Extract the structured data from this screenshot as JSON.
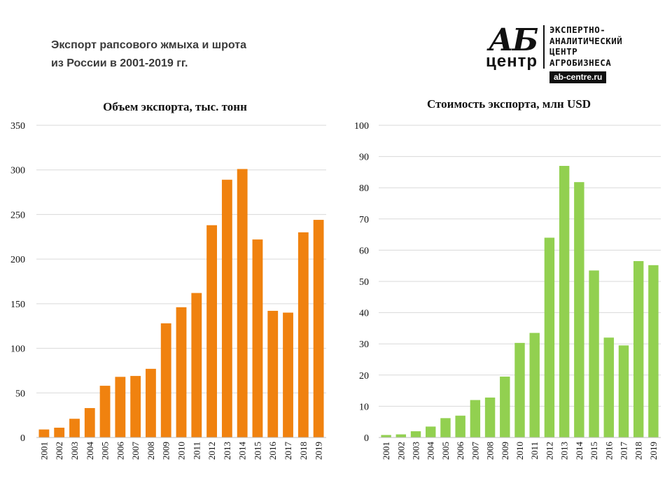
{
  "header": {
    "title_line1": "Экспорт рапсового  жмыха и шрота",
    "title_line2": "из России в 2001-2019 гг."
  },
  "logo": {
    "mark_top": "АБ",
    "mark_bottom": "центр",
    "line1": "ЭКСПЕРТНО-",
    "line2": "АНАЛИТИЧЕСКИЙ",
    "line3": "ЦЕНТР",
    "line4": "АГРОБИЗНЕСА",
    "url": "ab-centre.ru"
  },
  "chart_data": [
    {
      "type": "bar",
      "title": "Объем экспорта, тыс. тонн",
      "xlabel": "",
      "ylabel": "",
      "color": "#f0820f",
      "ylim": [
        0,
        350
      ],
      "yticks": [
        0,
        50,
        100,
        150,
        200,
        250,
        300,
        350
      ],
      "grid": true,
      "categories": [
        "2001",
        "2002",
        "2003",
        "2004",
        "2005",
        "2006",
        "2007",
        "2008",
        "2009",
        "2010",
        "2011",
        "2012",
        "2013",
        "2014",
        "2015",
        "2016",
        "2017",
        "2018",
        "2019"
      ],
      "values": [
        9,
        11,
        21,
        33,
        58,
        68,
        69,
        77,
        128,
        146,
        162,
        238,
        289,
        301,
        222,
        142,
        140,
        230,
        244
      ]
    },
    {
      "type": "bar",
      "title": "Стоимость экспорта, млн USD",
      "xlabel": "",
      "ylabel": "",
      "color": "#92d050",
      "ylim": [
        0,
        100
      ],
      "yticks": [
        0,
        10,
        20,
        30,
        40,
        50,
        60,
        70,
        80,
        90,
        100
      ],
      "grid": true,
      "categories": [
        "2001",
        "2002",
        "2003",
        "2004",
        "2005",
        "2006",
        "2007",
        "2008",
        "2009",
        "2010",
        "2011",
        "2012",
        "2013",
        "2014",
        "2015",
        "2016",
        "2017",
        "2018",
        "2019"
      ],
      "values": [
        0.8,
        1.0,
        2.0,
        3.5,
        6.2,
        7.0,
        12.0,
        12.8,
        19.5,
        30.3,
        33.5,
        64.0,
        87.0,
        81.8,
        53.5,
        32.0,
        29.5,
        56.5,
        55.2
      ]
    }
  ]
}
